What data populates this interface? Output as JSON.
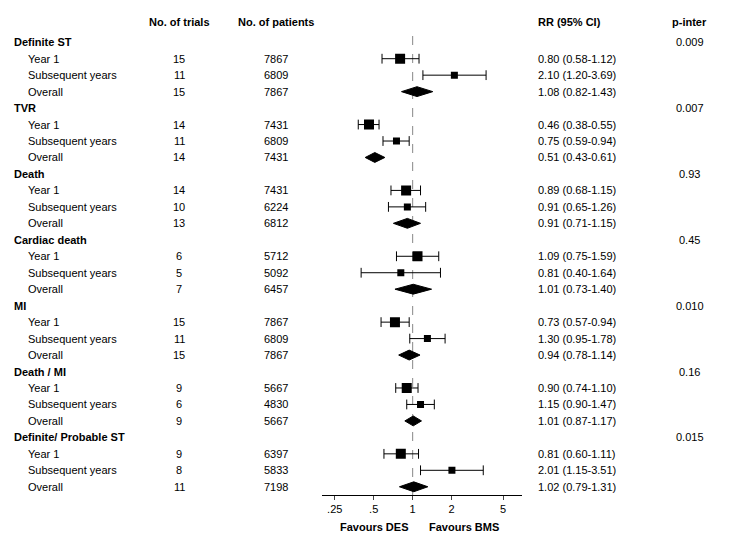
{
  "chart_data": {
    "type": "forest",
    "log": "x",
    "grid": false,
    "color": "#000000",
    "columns": [
      "No. of trials",
      "No. of patients",
      "RR (95% CI)",
      "p-inter"
    ],
    "sections": [
      {
        "header": "Definite ST",
        "p_inter": "0.009",
        "rows": [
          {
            "label": "Year 1",
            "trials": 15,
            "patients": 7867,
            "rr": 0.8,
            "ci_lo": 0.58,
            "ci_hi": 1.12,
            "marker": "square",
            "rr_text": "0.80 (0.58-1.12)"
          },
          {
            "label": "Subsequent years",
            "trials": 11,
            "patients": 6809,
            "rr": 2.1,
            "ci_lo": 1.2,
            "ci_hi": 3.69,
            "marker": "square_small",
            "rr_text": "2.10 (1.20-3.69)"
          },
          {
            "label": "Overall",
            "trials": 15,
            "patients": 7867,
            "rr": 1.08,
            "ci_lo": 0.82,
            "ci_hi": 1.43,
            "marker": "diamond",
            "rr_text": "1.08 (0.82-1.43)"
          }
        ]
      },
      {
        "header": "TVR",
        "p_inter": "0.007",
        "rows": [
          {
            "label": "Year 1",
            "trials": 14,
            "patients": 7431,
            "rr": 0.46,
            "ci_lo": 0.38,
            "ci_hi": 0.55,
            "marker": "square",
            "rr_text": "0.46 (0.38-0.55)"
          },
          {
            "label": "Subsequent years",
            "trials": 11,
            "patients": 6809,
            "rr": 0.75,
            "ci_lo": 0.59,
            "ci_hi": 0.94,
            "marker": "square_small",
            "rr_text": "0.75 (0.59-0.94)"
          },
          {
            "label": "Overall",
            "trials": 14,
            "patients": 7431,
            "rr": 0.51,
            "ci_lo": 0.43,
            "ci_hi": 0.61,
            "marker": "diamond",
            "rr_text": "0.51 (0.43-0.61)"
          }
        ]
      },
      {
        "header": "Death",
        "p_inter": "0.93",
        "rows": [
          {
            "label": "Year 1",
            "trials": 14,
            "patients": 7431,
            "rr": 0.89,
            "ci_lo": 0.68,
            "ci_hi": 1.15,
            "marker": "square",
            "rr_text": "0.89 (0.68-1.15)"
          },
          {
            "label": "Subsequent years",
            "trials": 10,
            "patients": 6224,
            "rr": 0.91,
            "ci_lo": 0.65,
            "ci_hi": 1.26,
            "marker": "square_small",
            "rr_text": "0.91 (0.65-1.26)"
          },
          {
            "label": "Overall",
            "trials": 13,
            "patients": 6812,
            "rr": 0.91,
            "ci_lo": 0.71,
            "ci_hi": 1.15,
            "marker": "diamond",
            "rr_text": "0.91 (0.71-1.15)"
          }
        ]
      },
      {
        "header": "Cardiac death",
        "p_inter": "0.45",
        "rows": [
          {
            "label": "Year 1",
            "trials": 6,
            "patients": 5712,
            "rr": 1.09,
            "ci_lo": 0.75,
            "ci_hi": 1.59,
            "marker": "square",
            "rr_text": "1.09 (0.75-1.59)"
          },
          {
            "label": "Subsequent years",
            "trials": 5,
            "patients": 5092,
            "rr": 0.81,
            "ci_lo": 0.4,
            "ci_hi": 1.64,
            "marker": "square_small",
            "rr_text": "0.81 (0.40-1.64)"
          },
          {
            "label": "Overall",
            "trials": 7,
            "patients": 6457,
            "rr": 1.01,
            "ci_lo": 0.73,
            "ci_hi": 1.4,
            "marker": "diamond",
            "rr_text": "1.01 (0.73-1.40)"
          }
        ]
      },
      {
        "header": "MI",
        "p_inter": "0.010",
        "rows": [
          {
            "label": "Year 1",
            "trials": 15,
            "patients": 7867,
            "rr": 0.73,
            "ci_lo": 0.57,
            "ci_hi": 0.94,
            "marker": "square",
            "rr_text": "0.73 (0.57-0.94)"
          },
          {
            "label": "Subsequent years",
            "trials": 11,
            "patients": 6809,
            "rr": 1.3,
            "ci_lo": 0.95,
            "ci_hi": 1.78,
            "marker": "square_small",
            "rr_text": "1.30 (0.95-1.78)"
          },
          {
            "label": "Overall",
            "trials": 15,
            "patients": 7867,
            "rr": 0.94,
            "ci_lo": 0.78,
            "ci_hi": 1.14,
            "marker": "diamond",
            "rr_text": "0.94 (0.78-1.14)"
          }
        ]
      },
      {
        "header": "Death / MI",
        "p_inter": "0.16",
        "rows": [
          {
            "label": "Year 1",
            "trials": 9,
            "patients": 5667,
            "rr": 0.9,
            "ci_lo": 0.74,
            "ci_hi": 1.1,
            "marker": "square",
            "rr_text": "0.90 (0.74-1.10)"
          },
          {
            "label": "Subsequent years",
            "trials": 6,
            "patients": 4830,
            "rr": 1.15,
            "ci_lo": 0.9,
            "ci_hi": 1.47,
            "marker": "square_small",
            "rr_text": "1.15 (0.90-1.47)"
          },
          {
            "label": "Overall",
            "trials": 9,
            "patients": 5667,
            "rr": 1.01,
            "ci_lo": 0.87,
            "ci_hi": 1.17,
            "marker": "diamond",
            "rr_text": "1.01 (0.87-1.17)"
          }
        ]
      },
      {
        "header": "Definite/ Probable ST",
        "p_inter": "0.015",
        "rows": [
          {
            "label": "Year 1",
            "trials": 9,
            "patients": 6397,
            "rr": 0.81,
            "ci_lo": 0.6,
            "ci_hi": 1.11,
            "marker": "square",
            "rr_text": "0.81 (0.60-1.11)"
          },
          {
            "label": "Subsequent years",
            "trials": 8,
            "patients": 5833,
            "rr": 2.01,
            "ci_lo": 1.15,
            "ci_hi": 3.51,
            "marker": "square_small",
            "rr_text": "2.01 (1.15-3.51)"
          },
          {
            "label": "Overall",
            "trials": 11,
            "patients": 7198,
            "rr": 1.02,
            "ci_lo": 0.79,
            "ci_hi": 1.31,
            "marker": "diamond",
            "rr_text": "1.02 (0.79-1.31)"
          }
        ]
      }
    ],
    "xlim": [
      0.2,
      7.0
    ],
    "xticks": [
      {
        "value": 0.25,
        "label": ".25"
      },
      {
        "value": 0.5,
        "label": ".5"
      },
      1,
      2,
      5
    ],
    "reference_line": 1,
    "annotations": [
      {
        "text": "Favours DES",
        "x": 0.5
      },
      {
        "text": "Favours BMS",
        "x": 2.5
      }
    ]
  }
}
